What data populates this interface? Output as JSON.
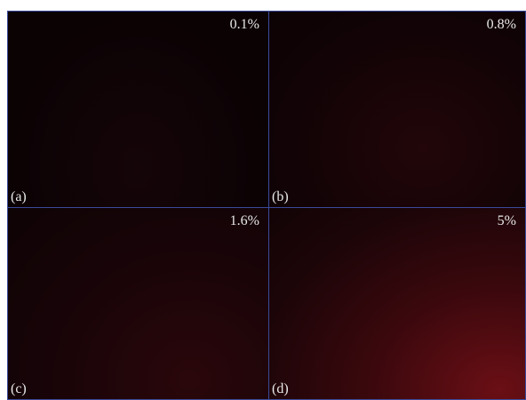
{
  "panels": [
    {
      "label": "(a)",
      "concentration": "0.1%"
    },
    {
      "label": "(b)",
      "concentration": "0.8%"
    },
    {
      "label": "(c)",
      "concentration": "1.6%"
    },
    {
      "label": "(d)",
      "concentration": "5%"
    }
  ]
}
